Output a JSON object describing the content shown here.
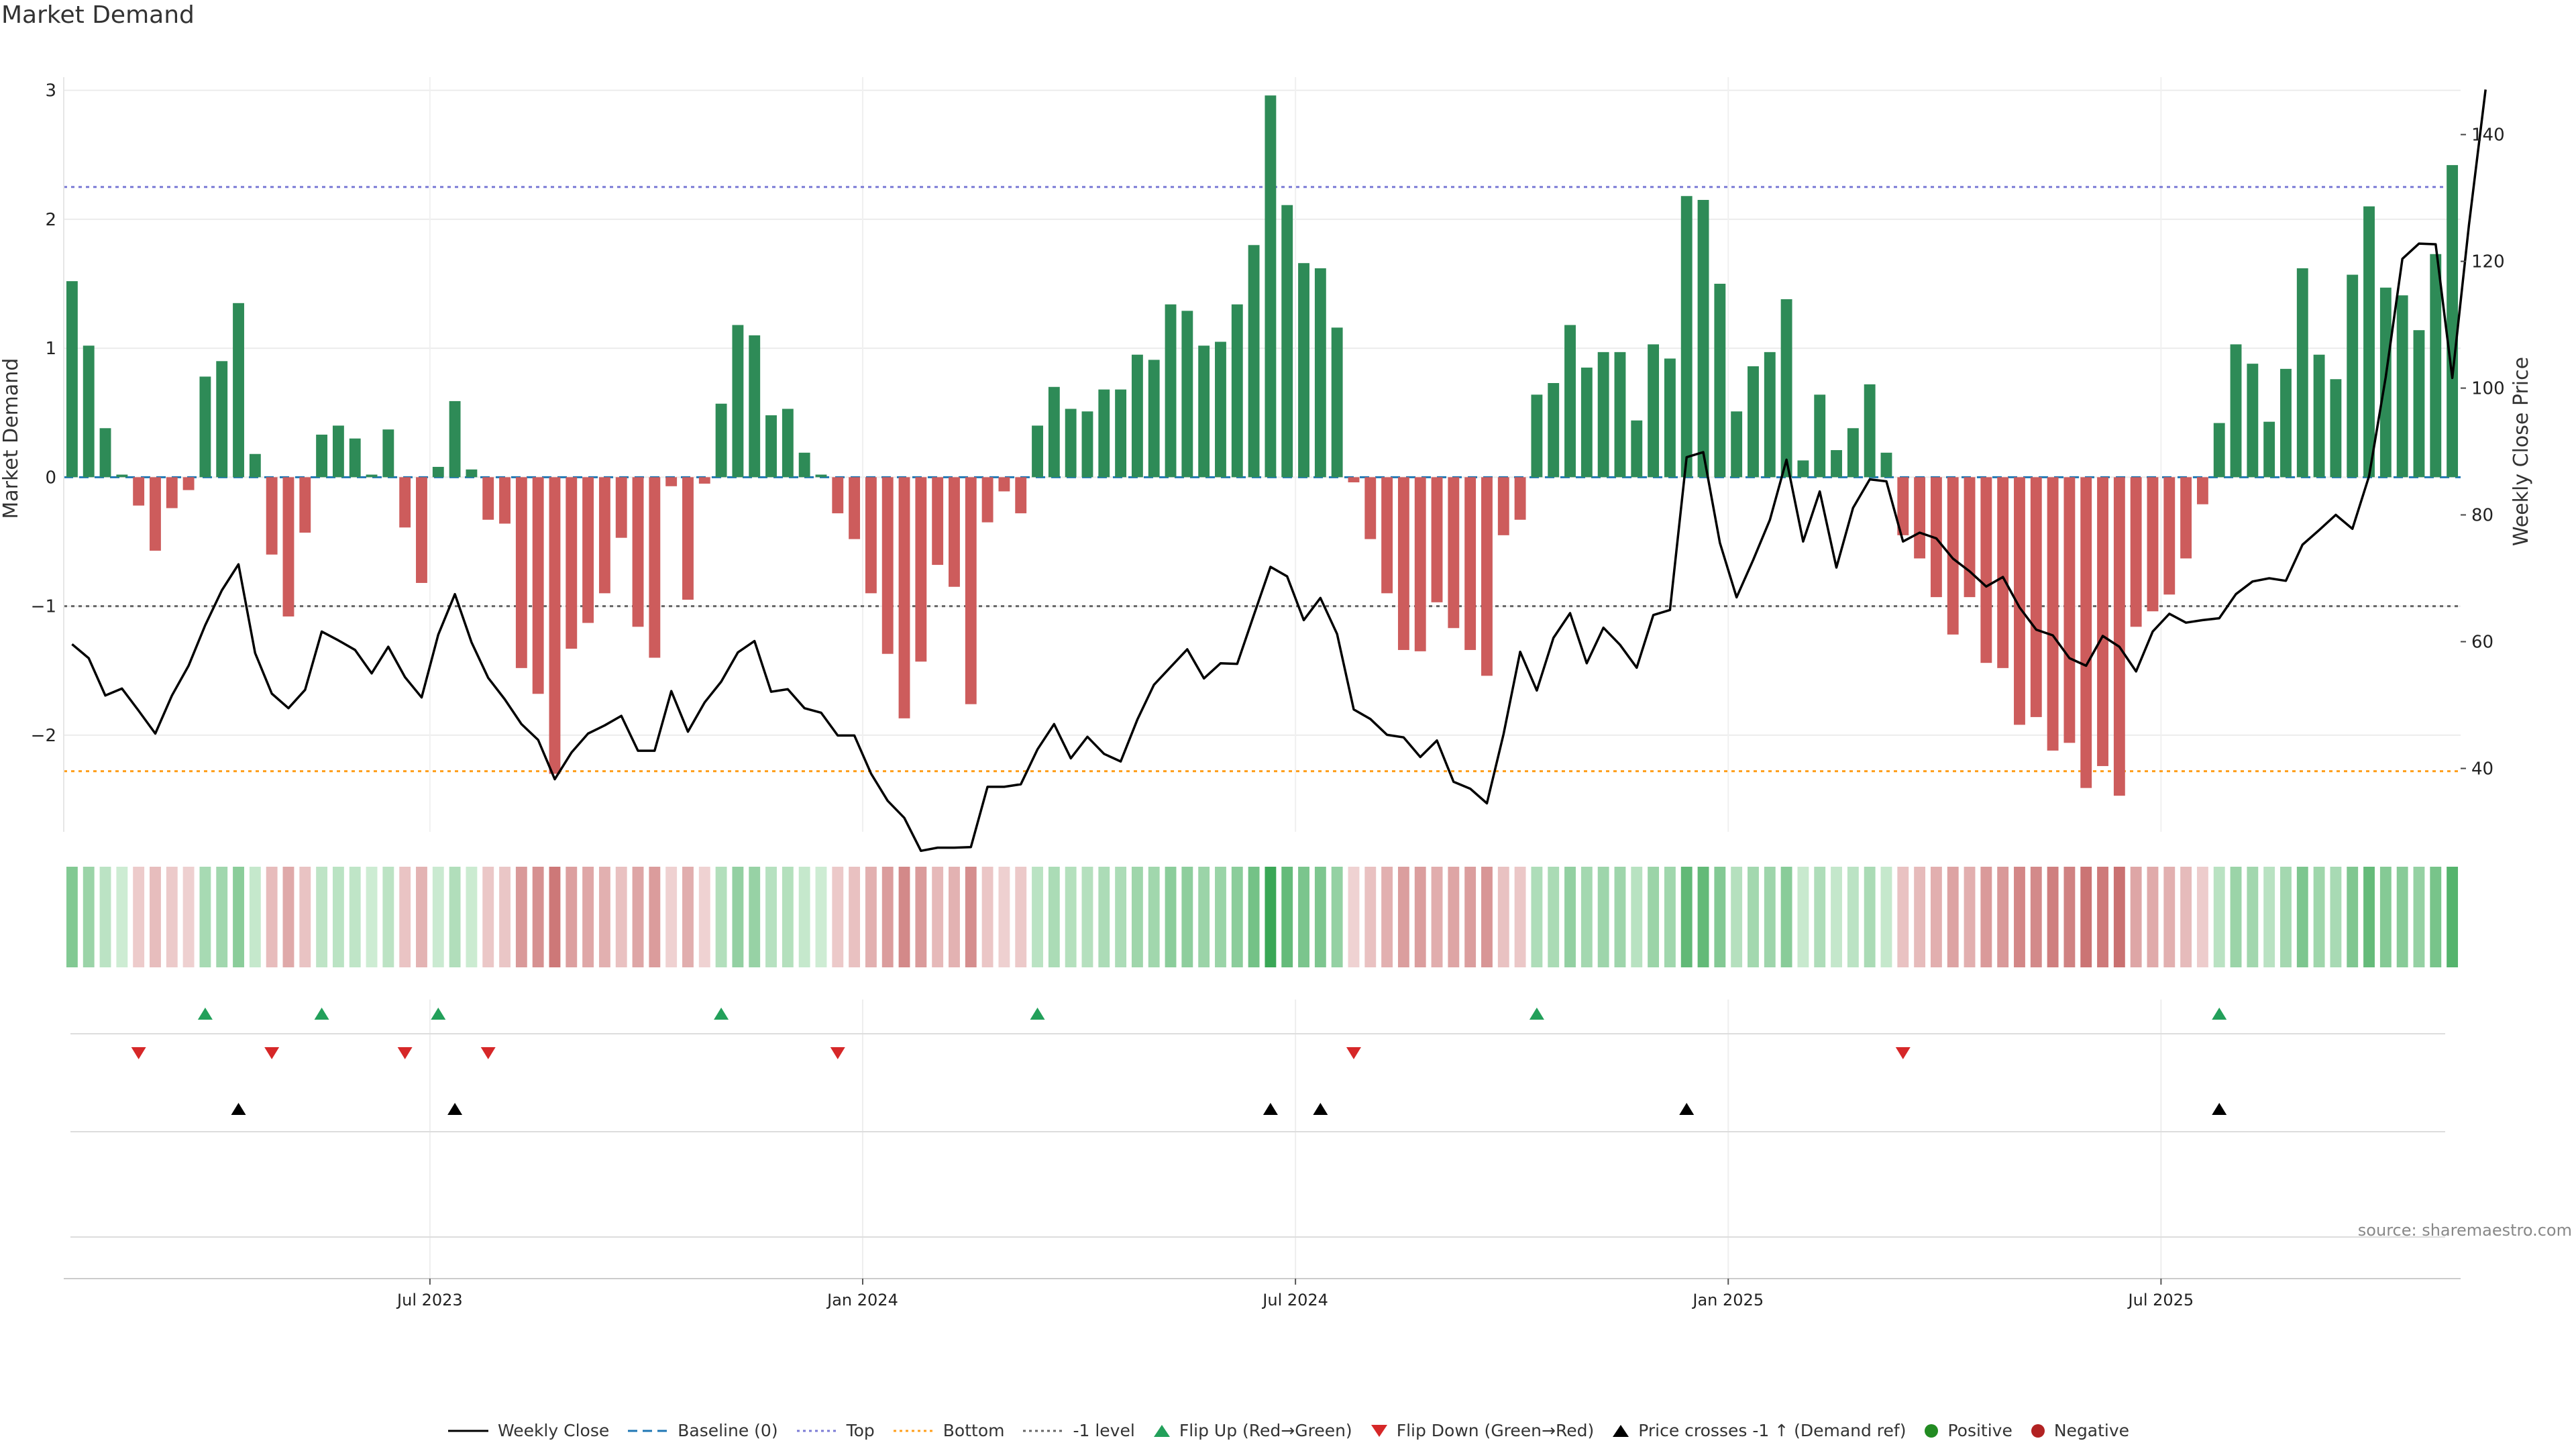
{
  "title": "Market Demand",
  "source": "source: sharemaestro.com",
  "colors": {
    "positive_bar": "#2e8b57",
    "negative_bar": "#cd5c5c",
    "price_line": "#000000",
    "baseline": "#1f77b4",
    "top_line": "#7b7bd6",
    "bottom_line": "#ff9f1c",
    "minus_one_line": "#666666",
    "flip_up": "#22a05a",
    "flip_down": "#d62728",
    "cross": "#000000",
    "positive_dot": "#228b22",
    "negative_dot": "#b22222"
  },
  "chart_data": {
    "type": "bar",
    "title": "Market Demand",
    "ylabel": "Market Demand",
    "y2label": "Weekly Close Price",
    "ylim": [
      -2.75,
      3.05
    ],
    "y2lim": [
      30,
      148
    ],
    "yticks": [
      3,
      2,
      1,
      0,
      -1,
      -2
    ],
    "yticklabels": [
      "3",
      "2",
      "1",
      "0",
      "−1",
      "−2"
    ],
    "y2ticks": [
      140,
      120,
      100,
      80,
      60,
      40
    ],
    "xtick_labels": [
      "Jul 2023",
      "Jan 2024",
      "Jul 2024",
      "Jan 2025",
      "Jul 2025"
    ],
    "xtick_weeks": [
      22,
      48,
      74,
      100,
      126
    ],
    "levels": {
      "top": 2.25,
      "bottom": -2.28,
      "minus_one": -1.0,
      "baseline": 0
    },
    "demand": [
      1.52,
      1.02,
      0.38,
      0.02,
      -0.22,
      -0.57,
      -0.24,
      -0.1,
      0.78,
      0.9,
      1.35,
      0.18,
      -0.6,
      -1.08,
      -0.43,
      0.33,
      0.4,
      0.3,
      0.02,
      0.37,
      -0.39,
      -0.82,
      0.08,
      0.59,
      0.06,
      -0.33,
      -0.36,
      -1.48,
      -1.68,
      -2.3,
      -1.33,
      -1.13,
      -0.9,
      -0.47,
      -1.16,
      -1.4,
      -0.07,
      -0.95,
      -0.05,
      0.57,
      1.18,
      1.1,
      0.48,
      0.53,
      0.19,
      0.02,
      -0.28,
      -0.48,
      -0.9,
      -1.37,
      -1.87,
      -1.43,
      -0.68,
      -0.85,
      -1.76,
      -0.35,
      -0.11,
      -0.28,
      0.4,
      0.7,
      0.53,
      0.51,
      0.68,
      0.68,
      0.95,
      0.91,
      1.34,
      1.29,
      1.02,
      1.05,
      1.34,
      1.8,
      2.96,
      2.11,
      1.66,
      1.62,
      1.16,
      -0.04,
      -0.48,
      -0.9,
      -1.34,
      -1.35,
      -0.97,
      -1.17,
      -1.34,
      -1.54,
      -0.45,
      -0.33,
      0.64,
      0.73,
      1.18,
      0.85,
      0.97,
      0.97,
      0.44,
      1.03,
      0.92,
      2.18,
      2.15,
      1.5,
      0.51,
      0.86,
      0.97,
      1.38,
      0.13,
      0.64,
      0.21,
      0.38,
      0.72,
      0.19,
      -0.45,
      -0.63,
      -0.93,
      -1.22,
      -0.93,
      -1.44,
      -1.48,
      -1.92,
      -1.86,
      -2.12,
      -2.06,
      -2.41,
      -2.24,
      -2.47,
      -1.16,
      -1.04,
      -0.91,
      -0.63,
      -0.21,
      0.42,
      1.03,
      0.88,
      0.43,
      0.84,
      1.62,
      0.95,
      0.76,
      1.57,
      2.1,
      1.47,
      1.41,
      1.14,
      1.73,
      2.42
    ],
    "close": [
      59.6,
      57.4,
      51.5,
      52.6,
      49.1,
      45.5,
      51.5,
      56.2,
      62.6,
      68.1,
      72.2,
      58.2,
      51.8,
      49.5,
      52.4,
      61.6,
      60.2,
      58.7,
      55.0,
      59.2,
      54.4,
      51.2,
      61.1,
      67.5,
      59.9,
      54.3,
      50.9,
      47.0,
      44.5,
      38.3,
      42.5,
      45.5,
      46.8,
      48.3,
      42.8,
      42.8,
      52.2,
      45.8,
      50.4,
      53.7,
      58.3,
      60.1,
      52.1,
      52.5,
      49.5,
      48.8,
      45.2,
      45.2,
      39.2,
      34.9,
      32.2,
      27.0,
      27.5,
      27.5,
      27.6,
      37.1,
      37.1,
      37.5,
      43.0,
      47.0,
      41.6,
      45.0,
      42.3,
      41.1,
      47.7,
      53.2,
      56.0,
      58.8,
      54.2,
      56.6,
      56.5,
      64.2,
      71.8,
      70.3,
      63.4,
      66.9,
      61.2,
      49.3,
      47.8,
      45.3,
      44.9,
      41.8,
      44.4,
      37.9,
      36.8,
      34.5,
      45.4,
      58.4,
      52.3,
      60.6,
      64.5,
      56.6,
      62.2,
      59.5,
      55.9,
      64.2,
      65.0,
      89.1,
      89.9,
      75.6,
      67.0,
      72.9,
      79.2,
      88.7,
      75.8,
      83.7,
      71.7,
      81.1,
      85.6,
      85.3,
      75.8,
      77.2,
      76.3,
      73.1,
      71.1,
      68.7,
      70.2,
      65.4,
      61.9,
      61.0,
      57.4,
      56.2,
      60.9,
      59.2,
      55.3,
      61.6,
      64.4,
      63.0,
      63.4,
      63.7,
      67.5,
      69.5,
      70.0,
      69.6,
      75.3,
      77.6,
      80.0,
      77.8,
      86.1,
      101.7,
      120.4,
      122.8,
      122.7,
      101.6,
      125.7,
      147.1
    ],
    "flip_up_weeks": [
      8,
      15,
      22,
      39,
      58,
      88,
      129
    ],
    "flip_down_weeks": [
      4,
      12,
      20,
      25,
      46,
      77,
      110
    ],
    "cross_up_weeks": [
      10,
      23,
      72,
      75,
      97,
      129
    ],
    "legend": [
      "Weekly Close",
      "Baseline (0)",
      "Top",
      "Bottom",
      "-1 level",
      "Flip Up (Red→Green)",
      "Flip Down (Green→Red)",
      "Price crosses -1 ↑ (Demand ref)",
      "Positive",
      "Negative"
    ]
  }
}
